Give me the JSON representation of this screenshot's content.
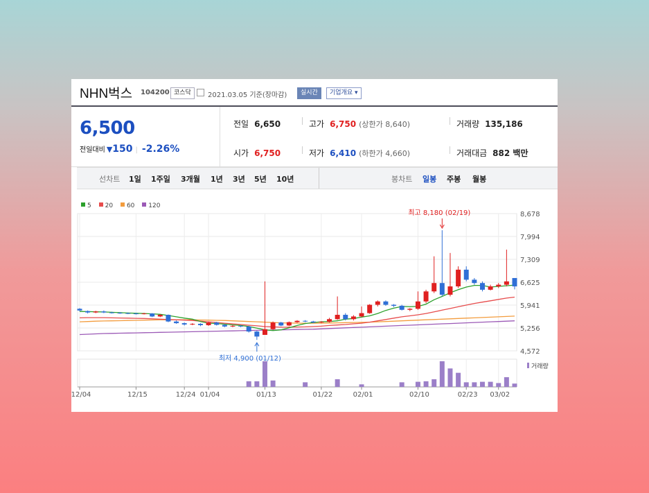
{
  "header": {
    "stock_name": "NHN벅스",
    "stock_code": "104200",
    "market": "코스닥",
    "date": "2021.03.05 기준(장마감)",
    "live_button": "실시간",
    "company_button": "기업개요",
    "dropdown_arrow": "▾"
  },
  "quote": {
    "price": "6,500",
    "change_label": "전일대비",
    "change_icon": "▼",
    "change_value": "150",
    "change_pct": "-2.26%",
    "prev_label": "전일",
    "prev_value": "6,650",
    "open_label": "시가",
    "open_value": "6,750",
    "high_label": "고가",
    "high_value": "6,750",
    "upper_limit": "(상한가 8,640)",
    "low_label": "저가",
    "low_value": "6,410",
    "lower_limit": "(하한가 4,660)",
    "volume_label": "거래량",
    "volume_value": "135,186",
    "amount_label": "거래대금",
    "amount_value": "882 백만"
  },
  "tabs": {
    "line_label": "선차트",
    "line_periods": [
      "1일",
      "1주일",
      "3개월",
      "1년",
      "3년",
      "5년",
      "10년"
    ],
    "candle_label": "봉차트",
    "candle_periods": [
      "일봉",
      "주봉",
      "월봉"
    ],
    "candle_active": "일봉"
  },
  "colors": {
    "up": "#e02020",
    "down": "#2f6fd6",
    "ma5": "#2ca02c",
    "ma20": "#e74c4c",
    "ma60": "#f39c3d",
    "ma120": "#9b59b6",
    "volume": "#9b7fc8"
  },
  "chart_data": {
    "type": "candlestick",
    "legend": [
      "5",
      "20",
      "60",
      "120"
    ],
    "y_ticks": [
      "8,678",
      "7,994",
      "7,309",
      "6,625",
      "5,941",
      "5,256",
      "4,572"
    ],
    "ylim": [
      4572,
      8678
    ],
    "x_ticks": [
      {
        "label": "12/04",
        "index": 0
      },
      {
        "label": "12/15",
        "index": 7
      },
      {
        "label": "12/24",
        "index": 13
      },
      {
        "label": "01/04",
        "index": 16
      },
      {
        "label": "01/13",
        "index": 23
      },
      {
        "label": "01/22",
        "index": 30
      },
      {
        "label": "02/01",
        "index": 35
      },
      {
        "label": "02/10",
        "index": 42
      },
      {
        "label": "02/23",
        "index": 48
      },
      {
        "label": "03/02",
        "index": 52
      }
    ],
    "annotations": [
      {
        "text": "최고 8,180 (02/19)",
        "index": 45,
        "value": 8180,
        "position": "above"
      },
      {
        "text": "최저 4,900 (01/12)",
        "index": 22,
        "value": 4900,
        "position": "below"
      }
    ],
    "volume_label": "거래량",
    "candles": [
      [
        5830,
        5780,
        5850,
        5760
      ],
      [
        5760,
        5720,
        5780,
        5690
      ],
      [
        5720,
        5750,
        5770,
        5700
      ],
      [
        5750,
        5720,
        5780,
        5700
      ],
      [
        5720,
        5710,
        5740,
        5690
      ],
      [
        5710,
        5700,
        5730,
        5680
      ],
      [
        5700,
        5690,
        5720,
        5670
      ],
      [
        5690,
        5680,
        5710,
        5660
      ],
      [
        5680,
        5690,
        5710,
        5660
      ],
      [
        5690,
        5600,
        5700,
        5580
      ],
      [
        5600,
        5650,
        5670,
        5580
      ],
      [
        5650,
        5450,
        5660,
        5430
      ],
      [
        5450,
        5400,
        5480,
        5380
      ],
      [
        5400,
        5360,
        5420,
        5330
      ],
      [
        5360,
        5380,
        5400,
        5340
      ],
      [
        5380,
        5340,
        5400,
        5310
      ],
      [
        5340,
        5420,
        5440,
        5320
      ],
      [
        5420,
        5350,
        5440,
        5330
      ],
      [
        5350,
        5300,
        5370,
        5280
      ],
      [
        5300,
        5320,
        5340,
        5280
      ],
      [
        5320,
        5300,
        5340,
        5280
      ],
      [
        5300,
        5150,
        5320,
        5120
      ],
      [
        5150,
        5000,
        5170,
        4900
      ],
      [
        5050,
        5220,
        6650,
        5050
      ],
      [
        5220,
        5420,
        5450,
        5200
      ],
      [
        5420,
        5330,
        5440,
        5310
      ],
      [
        5330,
        5430,
        5450,
        5310
      ],
      [
        5430,
        5470,
        5490,
        5410
      ],
      [
        5470,
        5450,
        5490,
        5430
      ],
      [
        5450,
        5420,
        5470,
        5400
      ],
      [
        5420,
        5440,
        5460,
        5400
      ],
      [
        5440,
        5520,
        5560,
        5420
      ],
      [
        5520,
        5650,
        6200,
        5500
      ],
      [
        5650,
        5520,
        5700,
        5480
      ],
      [
        5520,
        5600,
        5640,
        5480
      ],
      [
        5600,
        5700,
        5900,
        5580
      ],
      [
        5700,
        5950,
        5970,
        5680
      ],
      [
        5950,
        6050,
        6080,
        5900
      ],
      [
        6050,
        5950,
        6080,
        5920
      ],
      [
        5950,
        5920,
        5970,
        5880
      ],
      [
        5920,
        5800,
        5950,
        5780
      ],
      [
        5800,
        5830,
        5850,
        5760
      ],
      [
        5830,
        6050,
        6350,
        5800
      ],
      [
        6050,
        6350,
        6400,
        6000
      ],
      [
        6350,
        6600,
        7400,
        6300
      ],
      [
        6600,
        6250,
        8180,
        6200
      ],
      [
        6250,
        6500,
        7500,
        6200
      ],
      [
        6500,
        7000,
        7100,
        6450
      ],
      [
        7000,
        6700,
        7100,
        6650
      ],
      [
        6700,
        6600,
        6750,
        6550
      ],
      [
        6600,
        6400,
        6650,
        6350
      ],
      [
        6400,
        6500,
        6550,
        6380
      ],
      [
        6500,
        6550,
        6600,
        6450
      ],
      [
        6550,
        6650,
        7600,
        6500
      ],
      [
        6750,
        6500,
        6750,
        6410
      ]
    ],
    "volume": [
      0,
      0,
      0,
      0,
      0,
      0,
      0,
      0,
      0,
      0,
      0,
      0,
      0,
      0,
      0,
      0,
      0,
      0,
      0,
      0,
      0,
      22,
      22,
      100,
      25,
      0,
      0,
      0,
      18,
      0,
      0,
      0,
      30,
      0,
      0,
      10,
      0,
      0,
      0,
      0,
      18,
      0,
      20,
      22,
      30,
      100,
      72,
      55,
      18,
      18,
      20,
      20,
      15,
      38,
      13
    ],
    "ma5": [
      5750,
      5745,
      5740,
      5735,
      5725,
      5715,
      5705,
      5695,
      5690,
      5680,
      5665,
      5630,
      5590,
      5550,
      5520,
      5450,
      5400,
      5390,
      5370,
      5350,
      5330,
      5300,
      5250,
      5200,
      5180,
      5200,
      5260,
      5330,
      5390,
      5420,
      5440,
      5450,
      5470,
      5520,
      5540,
      5580,
      5620,
      5690,
      5780,
      5850,
      5900,
      5890,
      5900,
      5970,
      6100,
      6200,
      6310,
      6400,
      6480,
      6530,
      6530,
      6480,
      6500,
      6520,
      6540
    ],
    "ma20": [
      5560,
      5565,
      5565,
      5565,
      5560,
      5555,
      5550,
      5545,
      5540,
      5530,
      5520,
      5510,
      5500,
      5490,
      5480,
      5460,
      5440,
      5420,
      5400,
      5380,
      5360,
      5340,
      5320,
      5300,
      5290,
      5280,
      5280,
      5285,
      5290,
      5300,
      5310,
      5330,
      5345,
      5360,
      5380,
      5400,
      5430,
      5470,
      5510,
      5550,
      5590,
      5620,
      5650,
      5690,
      5740,
      5790,
      5840,
      5890,
      5940,
      5990,
      6030,
      6070,
      6110,
      6150,
      6180
    ],
    "ma60": [
      5440,
      5450,
      5460,
      5465,
      5470,
      5475,
      5480,
      5485,
      5490,
      5495,
      5500,
      5500,
      5500,
      5500,
      5500,
      5495,
      5490,
      5485,
      5480,
      5470,
      5460,
      5450,
      5440,
      5430,
      5420,
      5410,
      5405,
      5400,
      5400,
      5400,
      5400,
      5405,
      5410,
      5415,
      5420,
      5425,
      5430,
      5440,
      5450,
      5460,
      5470,
      5480,
      5490,
      5500,
      5510,
      5520,
      5530,
      5540,
      5550,
      5560,
      5570,
      5580,
      5590,
      5600,
      5610
    ],
    "ma120": [
      5060,
      5070,
      5080,
      5090,
      5095,
      5100,
      5105,
      5110,
      5115,
      5120,
      5125,
      5130,
      5135,
      5140,
      5145,
      5150,
      5155,
      5160,
      5165,
      5170,
      5175,
      5180,
      5185,
      5190,
      5195,
      5200,
      5205,
      5210,
      5215,
      5220,
      5230,
      5240,
      5250,
      5260,
      5270,
      5280,
      5290,
      5300,
      5310,
      5320,
      5330,
      5340,
      5350,
      5360,
      5370,
      5380,
      5390,
      5400,
      5410,
      5420,
      5430,
      5440,
      5450,
      5460,
      5470
    ]
  }
}
